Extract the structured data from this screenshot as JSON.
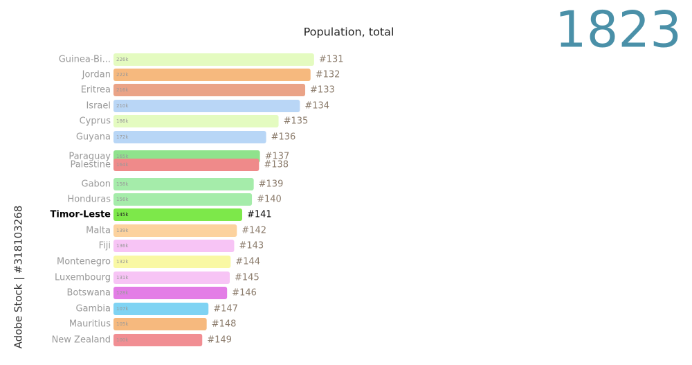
{
  "chart_data": {
    "type": "bar",
    "orientation": "horizontal",
    "title": "Population, total",
    "year": "1823",
    "watermark": "Adobe Stock | #318103268",
    "categories": [
      "Guinea-Bi...",
      "Jordan",
      "Eritrea",
      "Israel",
      "Cyprus",
      "Guyana",
      "Paraguay",
      "Palestine",
      "Gabon",
      "Honduras",
      "Timor-Leste",
      "Malta",
      "Fiji",
      "Montenegro",
      "Luxembourg",
      "Botswana",
      "Gambia",
      "Mauritius",
      "New Zealand"
    ],
    "values": [
      226,
      222,
      216,
      210,
      186,
      172,
      165,
      164,
      158,
      156,
      145,
      139,
      136,
      132,
      131,
      128,
      107,
      105,
      100
    ],
    "value_labels": [
      "226k",
      "222k",
      "216k",
      "210k",
      "186k",
      "172k",
      "165k",
      "164k",
      "158k",
      "156k",
      "145k",
      "139k",
      "136k",
      "132k",
      "131k",
      "128k",
      "107k",
      "105k",
      "100k"
    ],
    "ranks": [
      "#131",
      "#132",
      "#133",
      "#134",
      "#135",
      "#136",
      "#137",
      "#138",
      "#139",
      "#140",
      "#141",
      "#142",
      "#143",
      "#144",
      "#145",
      "#146",
      "#147",
      "#148",
      "#149"
    ],
    "colors": [
      "#e4fbc0",
      "#f6b97e",
      "#eaa387",
      "#b9d6f6",
      "#e4fbc0",
      "#b8d6f6",
      "#8fe28c",
      "#ef8a8a",
      "#a5ecaa",
      "#a5ecaa",
      "#7de84a",
      "#fcd29e",
      "#f7c4f5",
      "#f9f8a4",
      "#f7c4f5",
      "#e37de6",
      "#7fd3f3",
      "#f6b97e",
      "#f18e93"
    ],
    "highlight": "Timor-Leste",
    "xlim": [
      0,
      230
    ]
  }
}
